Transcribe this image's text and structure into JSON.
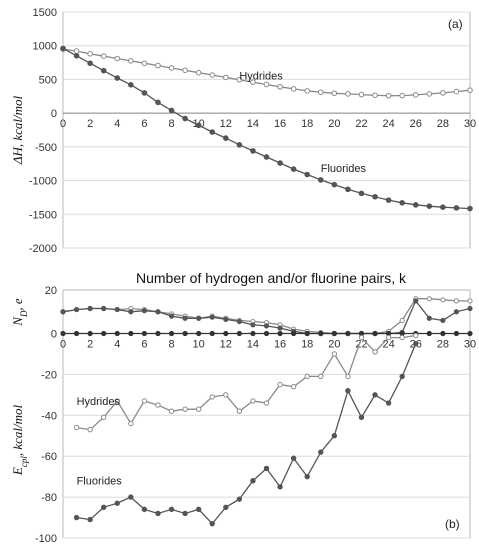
{
  "figure": {
    "middle_title": "Number of hydrogen and/or fluorine pairs, k"
  },
  "chart_data": [
    {
      "type": "line",
      "panel_label": "(a)",
      "ylabel": "ΔH, kcal/mol",
      "xlim": [
        0,
        30
      ],
      "ylim": [
        -2000,
        1500
      ],
      "x_ticks": [
        0,
        2,
        4,
        6,
        8,
        10,
        12,
        14,
        16,
        18,
        20,
        22,
        24,
        26,
        28,
        30
      ],
      "y_ticks": [
        1500,
        1000,
        500,
        0,
        -500,
        -1000,
        -1500,
        -2000
      ],
      "grid": "horizontal",
      "x": [
        0,
        1,
        2,
        3,
        4,
        5,
        6,
        7,
        8,
        9,
        10,
        11,
        12,
        13,
        14,
        15,
        16,
        17,
        18,
        19,
        20,
        21,
        22,
        23,
        24,
        25,
        26,
        27,
        28,
        29,
        30
      ],
      "series": [
        {
          "name": "Hydrides",
          "color": "#8a8a8a",
          "marker": "open-circle",
          "label_at": [
            13,
            560
          ],
          "values": [
            950,
            920,
            880,
            845,
            810,
            775,
            740,
            705,
            670,
            635,
            600,
            565,
            530,
            495,
            460,
            425,
            390,
            360,
            330,
            310,
            295,
            285,
            275,
            265,
            258,
            260,
            270,
            285,
            300,
            320,
            340
          ]
        },
        {
          "name": "Fluorides",
          "color": "#555555",
          "marker": "filled-circle",
          "label_at": [
            19,
            -810
          ],
          "values": [
            960,
            850,
            740,
            630,
            520,
            420,
            300,
            160,
            40,
            -80,
            -180,
            -280,
            -370,
            -470,
            -560,
            -650,
            -740,
            -830,
            -910,
            -990,
            -1060,
            -1130,
            -1190,
            -1240,
            -1290,
            -1330,
            -1360,
            -1380,
            -1395,
            -1405,
            -1415
          ]
        }
      ]
    },
    {
      "type": "line",
      "panel_label": "(b)",
      "ylabel": "N_D, e",
      "xlim": [
        0,
        30
      ],
      "ylim": [
        0,
        20
      ],
      "x_ticks": [
        0,
        2,
        4,
        6,
        8,
        10,
        12,
        14,
        16,
        18,
        20,
        22,
        24,
        26,
        28,
        30
      ],
      "y_ticks": [
        0,
        20
      ],
      "grid": "none",
      "x": [
        0,
        1,
        2,
        3,
        4,
        5,
        6,
        7,
        8,
        9,
        10,
        11,
        12,
        13,
        14,
        15,
        16,
        17,
        18,
        19,
        20,
        21,
        22,
        23,
        24,
        25,
        26,
        27,
        28,
        29,
        30
      ],
      "series": [
        {
          "name": "",
          "color": "#8a8a8a",
          "marker": "open-circle",
          "values": [
            10,
            11,
            11.5,
            11.5,
            11,
            11.5,
            11,
            10,
            9,
            8,
            7,
            8,
            7,
            6,
            5.5,
            5,
            4,
            2,
            1,
            0.5,
            0,
            0,
            0,
            0,
            1,
            6,
            16,
            16,
            15.5,
            15,
            15
          ]
        },
        {
          "name": "",
          "color": "#555555",
          "marker": "filled-circle",
          "values": [
            10,
            11,
            11.5,
            11.5,
            11,
            10,
            10.5,
            10,
            8,
            7,
            7,
            7.5,
            6.5,
            5.5,
            4,
            3.5,
            2.5,
            1,
            0,
            0,
            0,
            0,
            0,
            0,
            0,
            0.5,
            15,
            7,
            6,
            10,
            11.5
          ]
        },
        {
          "name": "",
          "color": "#333333",
          "marker": "filled-circle",
          "values": [
            0,
            0,
            0,
            0,
            0,
            0,
            0,
            0,
            0,
            0,
            0,
            0,
            0,
            0,
            0,
            0,
            0,
            0,
            0,
            0,
            0,
            0,
            0,
            0,
            0,
            0,
            0,
            0,
            0,
            0,
            0
          ]
        }
      ]
    },
    {
      "type": "line",
      "ylabel": "E_cpl, kcal/mol",
      "xlim": [
        0,
        30
      ],
      "ylim": [
        -100,
        0
      ],
      "y_ticks": [
        -20,
        -40,
        -60,
        -80,
        -100
      ],
      "grid": "horizontal",
      "x": [
        1,
        2,
        3,
        4,
        5,
        6,
        7,
        8,
        9,
        10,
        11,
        12,
        13,
        14,
        15,
        16,
        17,
        18,
        19,
        20,
        21,
        22,
        23,
        24,
        25,
        26
      ],
      "series": [
        {
          "name": "Hydrides",
          "color": "#8a8a8a",
          "marker": "open-circle",
          "label_at": [
            1,
            -33
          ],
          "values": [
            -46,
            -47,
            -41,
            -33,
            -44,
            -33,
            -35,
            -38,
            -37,
            -37,
            -31,
            -30,
            -38,
            -33,
            -34,
            -25,
            -26,
            -21,
            -21,
            -10,
            -21,
            -2,
            -9,
            -2,
            -2,
            -1
          ]
        },
        {
          "name": "Fluorides",
          "color": "#555555",
          "marker": "filled-circle",
          "label_at": [
            1,
            -72
          ],
          "values": [
            -90,
            -91,
            -85,
            -83,
            -80,
            -86,
            -88,
            -86,
            -88,
            -86,
            -93,
            -85,
            -81,
            -72,
            -66,
            -75,
            -61,
            -70,
            -58,
            -50,
            -28,
            -41,
            -30,
            -34,
            -21,
            -5
          ]
        }
      ]
    }
  ]
}
